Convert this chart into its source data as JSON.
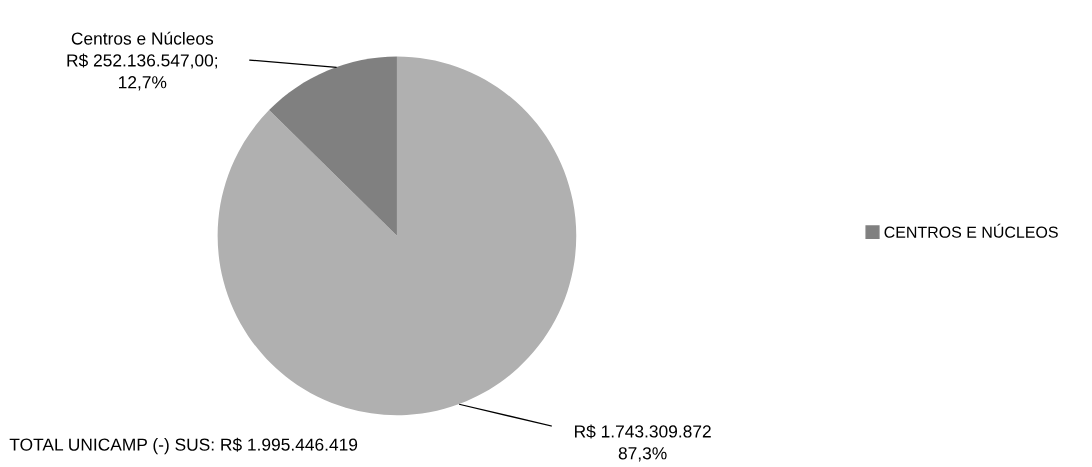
{
  "chart_data": {
    "type": "pie",
    "categories": [
      null,
      "CENTROS E NÚCLEOS"
    ],
    "values": [
      1743309872,
      252136547
    ],
    "colors": [
      "#b0b0b0",
      "#808080"
    ],
    "value_labels": [
      "R$ 1.743.309.872\n87,3%",
      "Centros e Núcleos\nR$ 252.136.547,00;\n12,7%"
    ],
    "legend": "right",
    "annotations": [
      "TOTAL UNICAMP (-) SUS: R$ 1.995.446.419"
    ]
  }
}
